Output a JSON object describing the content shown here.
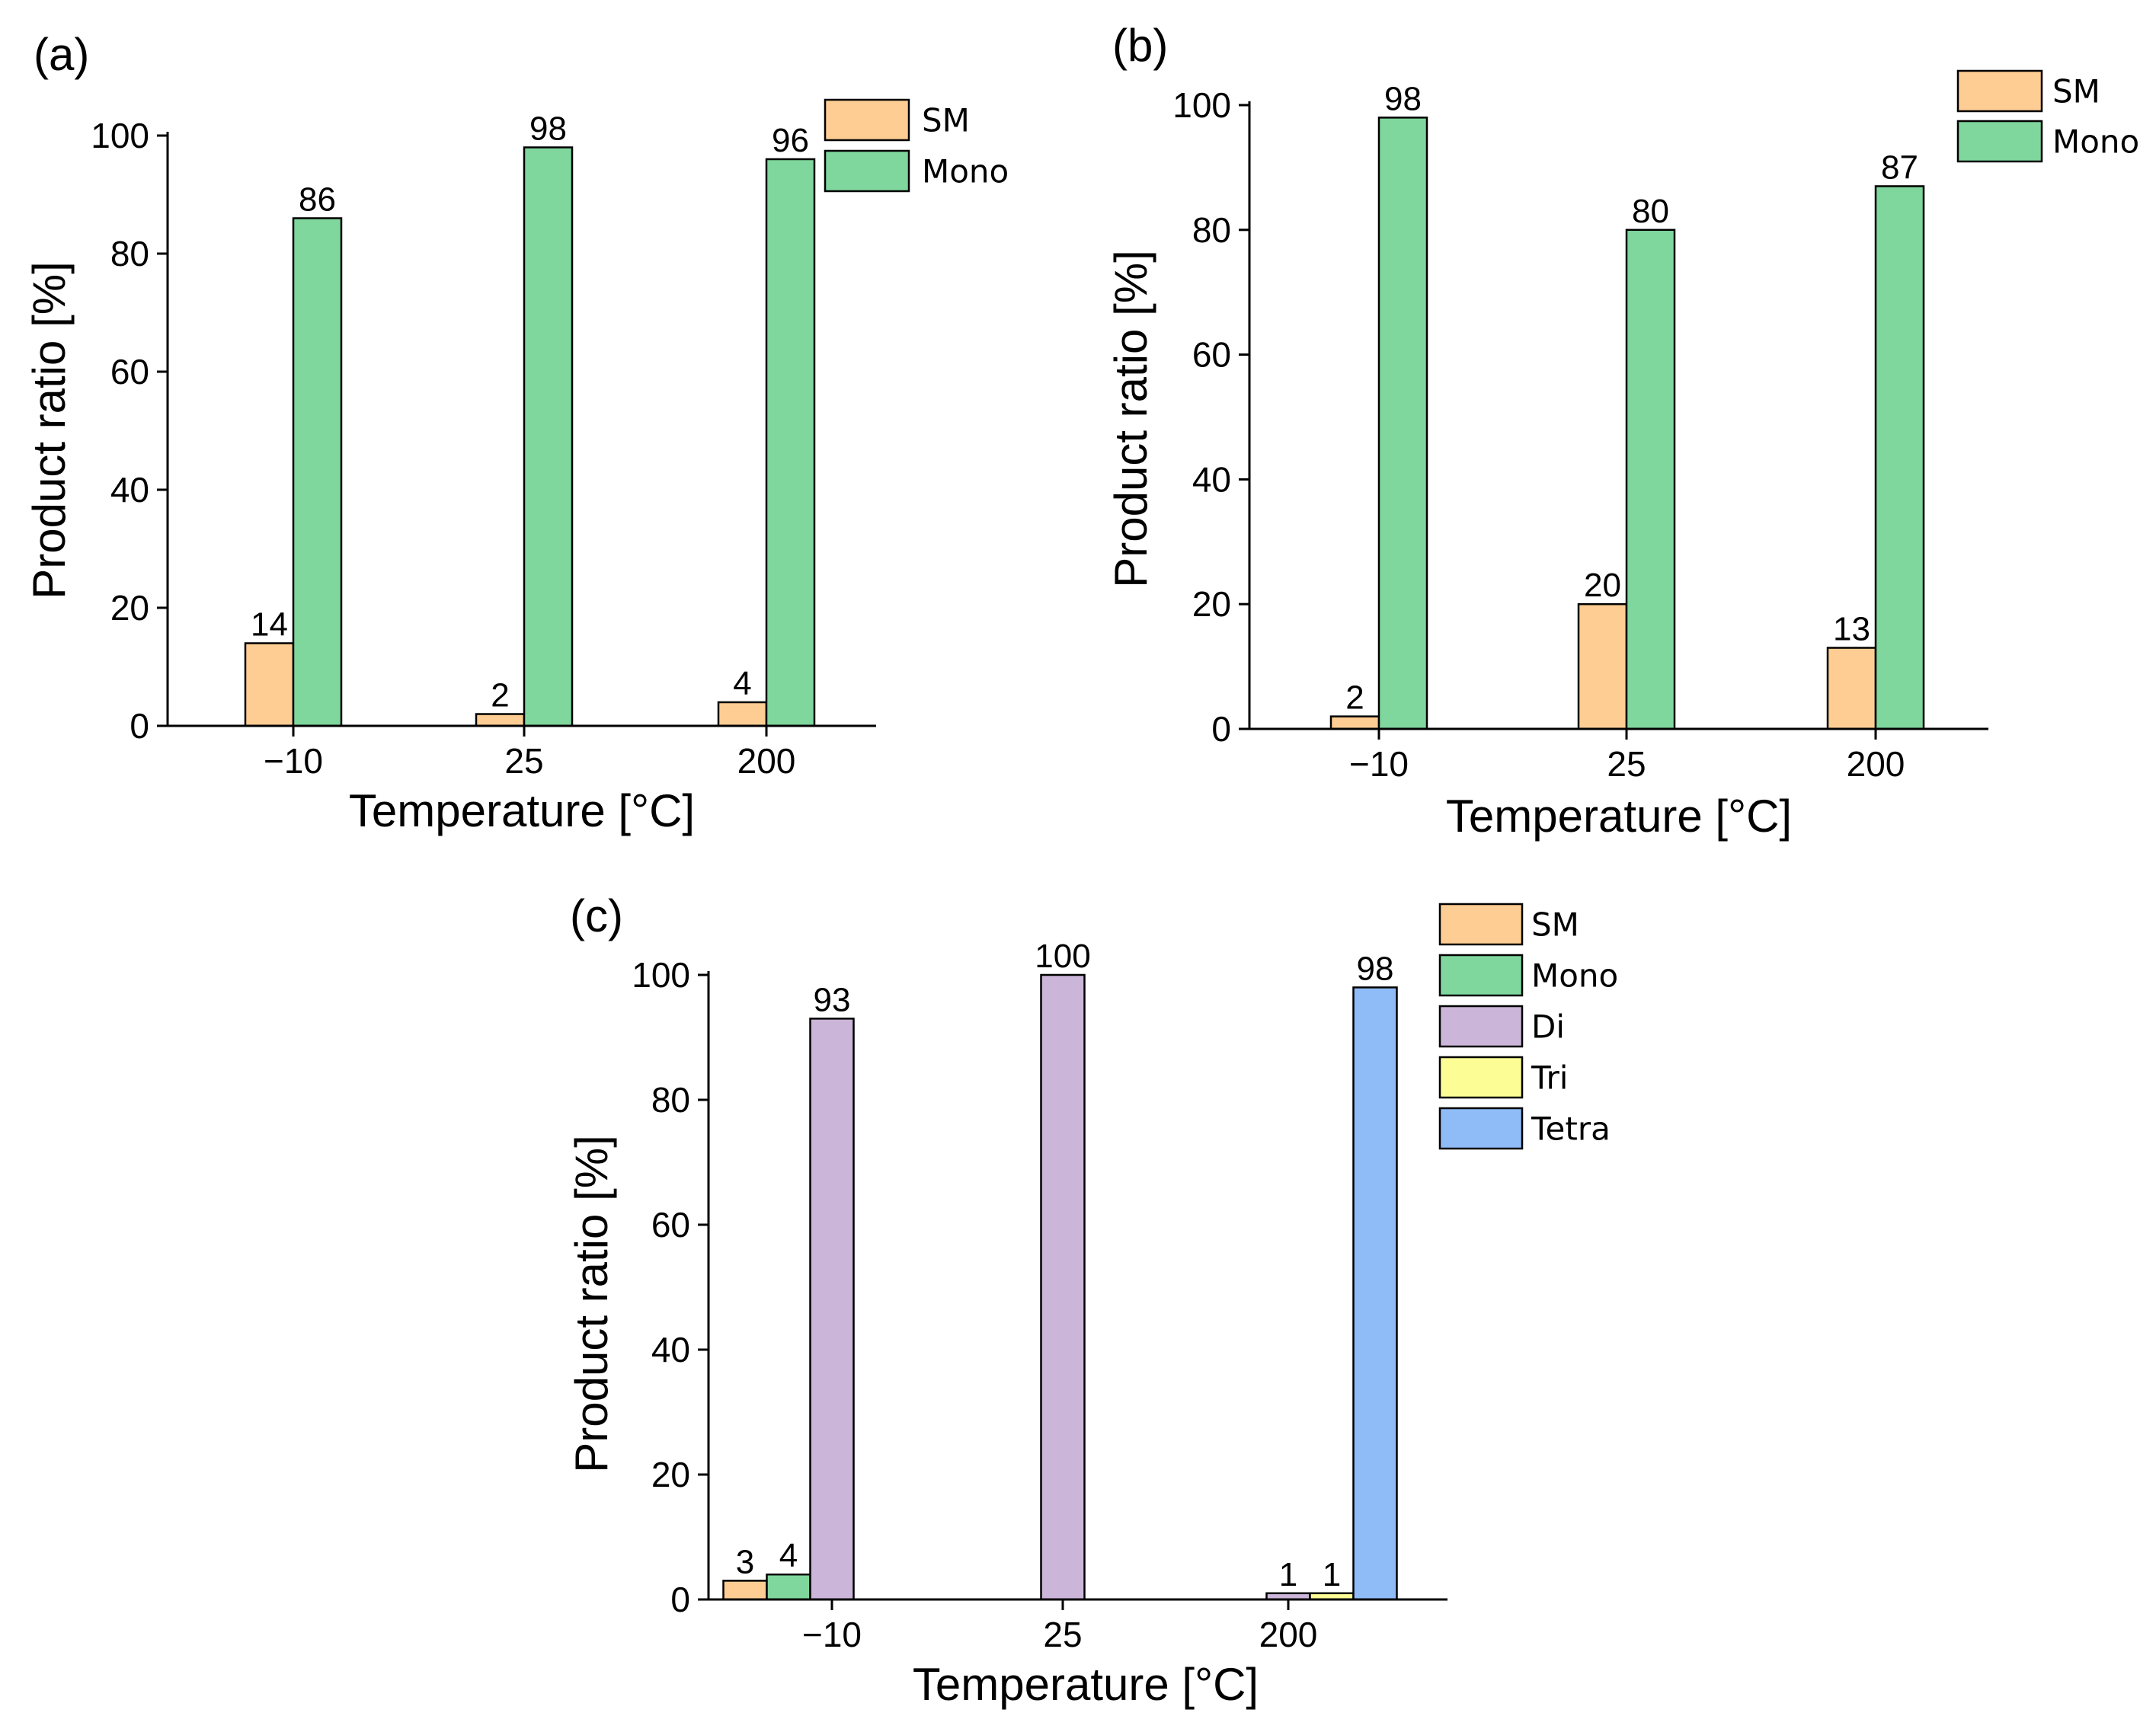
{
  "colors": {
    "SM": "#fdcd93",
    "Mono": "#7fd79d",
    "Di": "#cbb5d8",
    "Tri": "#fdfd96",
    "Tetra": "#8fbcf7"
  },
  "chart_data": [
    {
      "panel": "(a)",
      "type": "bar",
      "categories": [
        "−10",
        "25",
        "200"
      ],
      "series": [
        {
          "name": "SM",
          "values": [
            14,
            2,
            4
          ]
        },
        {
          "name": "Mono",
          "values": [
            86,
            98,
            96
          ]
        }
      ],
      "bar_labels": [
        [
          "14",
          "2",
          "4"
        ],
        [
          "86",
          "98",
          "96"
        ]
      ],
      "xlabel": "Temperature [°C]",
      "ylabel": "Product ratio [%]",
      "ylim": [
        0,
        100
      ],
      "yticks": [
        "0",
        "20",
        "40",
        "60",
        "80",
        "100"
      ],
      "legend": [
        "SM",
        "Mono"
      ],
      "legend_position": "top-right",
      "grid": false
    },
    {
      "panel": "(b)",
      "type": "bar",
      "categories": [
        "−10",
        "25",
        "200"
      ],
      "series": [
        {
          "name": "SM",
          "values": [
            2,
            20,
            13
          ]
        },
        {
          "name": "Mono",
          "values": [
            98,
            80,
            87
          ]
        }
      ],
      "bar_labels": [
        [
          "2",
          "20",
          "13"
        ],
        [
          "98",
          "80",
          "87"
        ]
      ],
      "xlabel": "Temperature [°C]",
      "ylabel": "Product ratio [%]",
      "ylim": [
        0,
        100
      ],
      "yticks": [
        "0",
        "20",
        "40",
        "60",
        "80",
        "100"
      ],
      "legend": [
        "SM",
        "Mono"
      ],
      "legend_position": "top-right",
      "grid": false
    },
    {
      "panel": "(c)",
      "type": "bar",
      "categories": [
        "−10",
        "25",
        "200"
      ],
      "series": [
        {
          "name": "SM",
          "values": [
            3,
            0,
            0
          ]
        },
        {
          "name": "Mono",
          "values": [
            4,
            0,
            0
          ]
        },
        {
          "name": "Di",
          "values": [
            93,
            100,
            1
          ]
        },
        {
          "name": "Tri",
          "values": [
            0,
            0,
            1
          ]
        },
        {
          "name": "Tetra",
          "values": [
            0,
            0,
            98
          ]
        }
      ],
      "bar_labels": [
        [
          "3",
          "",
          ""
        ],
        [
          "4",
          "",
          ""
        ],
        [
          "93",
          "100",
          "1"
        ],
        [
          "",
          "",
          "1"
        ],
        [
          "",
          "",
          "98"
        ]
      ],
      "xlabel": "Temperature [°C]",
      "ylabel": "Product ratio [%]",
      "ylim": [
        0,
        100
      ],
      "yticks": [
        "0",
        "20",
        "40",
        "60",
        "80",
        "100"
      ],
      "legend": [
        "SM",
        "Mono",
        "Di",
        "Tri",
        "Tetra"
      ],
      "legend_position": "top-right",
      "grid": false
    }
  ]
}
